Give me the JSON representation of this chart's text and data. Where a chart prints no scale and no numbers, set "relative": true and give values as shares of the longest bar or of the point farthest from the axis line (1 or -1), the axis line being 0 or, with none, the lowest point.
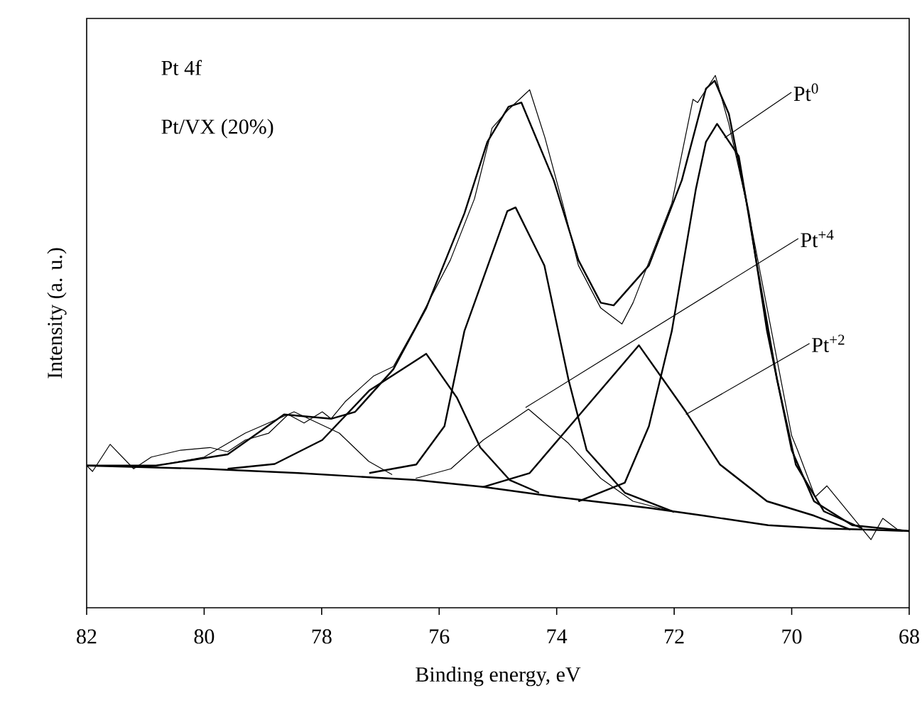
{
  "chart_data": {
    "type": "line",
    "relative": true,
    "xlabel": "Binding energy, eV",
    "ylabel": "Intensity (a. u.)",
    "xlim": [
      82,
      68
    ],
    "xticks": [
      82,
      80,
      78,
      76,
      74,
      72,
      70,
      68
    ],
    "annotations": [
      "Pt 4f",
      "Pt/VX (20%)",
      {
        "text": "Pt$^{0}$",
        "x": 71.14,
        "y": 0.883
      },
      {
        "text": "Pt$^{+4}$",
        "x": 74.53,
        "y": 0.376
      },
      {
        "text": "Pt$^{+2}$",
        "x": 71.8,
        "y": 0.363
      }
    ],
    "series": [
      {
        "color": "#000000",
        "x": [
          82,
          81.9,
          81.6,
          81.2,
          80.9,
          80.4,
          79.9,
          79.6,
          79.3,
          78.9,
          78.57,
          78.3,
          77.99,
          77.84,
          77.6,
          77.12,
          76.78,
          76.4,
          75.81,
          75.4,
          75.1,
          74.82,
          74.46,
          74.2,
          73.9,
          73.63,
          73.25,
          72.89,
          72.7,
          72.04,
          71.68,
          71.6,
          71.3,
          71.07,
          70.73,
          70.0,
          69.9,
          69.6,
          69.4,
          68.65,
          68.45,
          68.2,
          68
        ],
        "values": [
          0.267,
          0.256,
          0.307,
          0.261,
          0.283,
          0.296,
          0.301,
          0.293,
          0.315,
          0.328,
          0.363,
          0.347,
          0.368,
          0.355,
          0.387,
          0.435,
          0.453,
          0.528,
          0.653,
          0.768,
          0.901,
          0.936,
          0.973,
          0.883,
          0.76,
          0.643,
          0.563,
          0.533,
          0.573,
          0.76,
          0.955,
          0.949,
          1.0,
          0.909,
          0.741,
          0.323,
          0.296,
          0.208,
          0.229,
          0.128,
          0.168,
          0.147,
          0.144
        ]
      },
      {
        "color": "#000000",
        "x": [
          82,
          80.82,
          79.6,
          78.64,
          77.84,
          77.43,
          76.78,
          76.22,
          75.57,
          75.18,
          74.82,
          74.6,
          74.05,
          73.63,
          73.25,
          73.03,
          72.43,
          71.87,
          71.46,
          71.31,
          71.07,
          70.73,
          70.42,
          70.0,
          69.62,
          68.97,
          68
        ],
        "values": [
          0.267,
          0.267,
          0.288,
          0.363,
          0.355,
          0.368,
          0.448,
          0.563,
          0.741,
          0.875,
          0.941,
          0.949,
          0.803,
          0.653,
          0.573,
          0.568,
          0.643,
          0.803,
          0.975,
          0.99,
          0.928,
          0.741,
          0.52,
          0.296,
          0.2,
          0.155,
          0.144
        ]
      },
      {
        "color": "#000000",
        "x": [
          82,
          80,
          78.4,
          76.4,
          75.25,
          74,
          73,
          72.4,
          71.5,
          70.4,
          69.5,
          68.8,
          68
        ],
        "values": [
          0.267,
          0.261,
          0.253,
          0.24,
          0.227,
          0.208,
          0.195,
          0.187,
          0.173,
          0.155,
          0.149,
          0.147,
          0.144
        ]
      },
      {
        "color": "#000000",
        "x": [
          73.63,
          72.84,
          72.43,
          72.04,
          71.63,
          71.46,
          71.27,
          70.9,
          70.59,
          70.25,
          69.93,
          69.45,
          68.8
        ],
        "values": [
          0.2,
          0.235,
          0.341,
          0.52,
          0.787,
          0.875,
          0.909,
          0.848,
          0.643,
          0.429,
          0.269,
          0.181,
          0.149
        ]
      },
      {
        "color": "#000000",
        "x": [
          77.19,
          76.39,
          75.91,
          75.57,
          74.84,
          74.7,
          74.21,
          73.8,
          73.49,
          72.84,
          72.0
        ],
        "values": [
          0.253,
          0.269,
          0.341,
          0.52,
          0.745,
          0.752,
          0.643,
          0.429,
          0.296,
          0.216,
          0.18
        ]
      },
      {
        "color": "#000000",
        "x": [
          75.25,
          74.46,
          73.63,
          72.6,
          71.8,
          71.22,
          70.42,
          69.62,
          69.0
        ],
        "values": [
          0.227,
          0.253,
          0.36,
          0.493,
          0.368,
          0.269,
          0.2,
          0.173,
          0.147
        ]
      },
      {
        "color": "#000000",
        "x": [
          79.6,
          78.8,
          77.99,
          77.19,
          76.22,
          75.7,
          75.3,
          74.8,
          74.3
        ],
        "values": [
          0.261,
          0.27,
          0.315,
          0.408,
          0.477,
          0.395,
          0.301,
          0.24,
          0.216
        ]
      },
      {
        "color": "#000000",
        "x": [
          80.8,
          80.0,
          79.3,
          78.47,
          77.7,
          77.2,
          76.8
        ],
        "values": [
          0.267,
          0.283,
          0.328,
          0.368,
          0.328,
          0.275,
          0.25
        ]
      },
      {
        "color": "#000000",
        "x": [
          76.4,
          75.8,
          75.25,
          74.48,
          73.8,
          73.25,
          72.7,
          72.0
        ],
        "values": [
          0.243,
          0.261,
          0.315,
          0.373,
          0.309,
          0.243,
          0.2,
          0.18
        ]
      }
    ]
  }
}
